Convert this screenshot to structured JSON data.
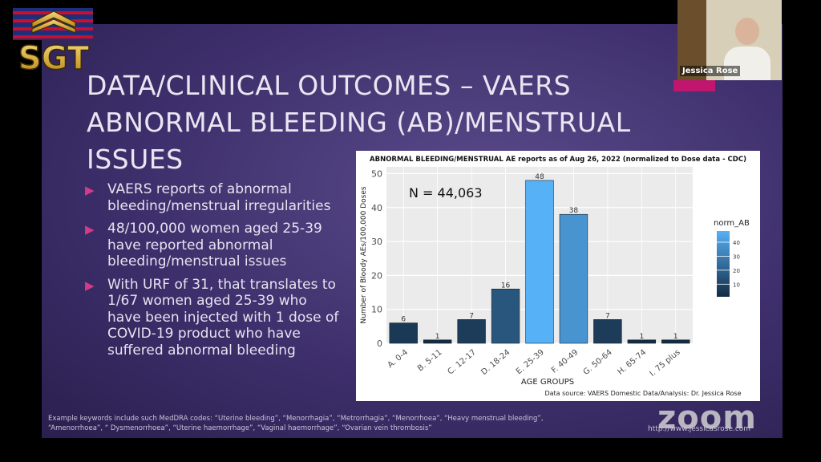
{
  "slide": {
    "title_lines": [
      "DATA/CLINICAL OUTCOMES – VAERS",
      "ABNORMAL BLEEDING (AB)/MENSTRUAL",
      "ISSUES"
    ],
    "bullets": [
      "VAERS reports of abnormal bleeding/menstrual irregularities",
      "48/100,000 women aged 25-39 have reported abnormal bleeding/menstrual issues",
      "With URF of 31, that translates to 1/67 women aged 25-39 who have been injected with 1 dose of COVID-19 product who have suffered abnormal bleeding"
    ],
    "footer_line1": "Example keywords include such MedDRA codes: “Uterine bleeding”, “Menorrhagia”, “Metrorrhagia”, “Menorrhoea”, “Heavy menstrual bleeding”,",
    "footer_line2": "“Amenorrhoea”, “ Dysmenorrhoea”, “Uterine haemorrhage”, “Vaginal haemorrhage”, “Ovarian vein thrombosis”",
    "url": "http://www.jessicasrose.com"
  },
  "video": {
    "participant_name": "Jessica Rose"
  },
  "watermark": {
    "text": "zoom"
  },
  "chart_data": {
    "type": "bar",
    "title": "ABNORMAL BLEEDING/MENSTRUAL AE reports as of Aug 26, 2022 (normalized to Dose data - CDC)",
    "annotation": "N = 44,063",
    "xlabel": "AGE GROUPS",
    "ylabel": "Number of Bloody AEs/100,000 Doses",
    "categories": [
      "A. 0-4",
      "B. 5-11",
      "C. 12-17",
      "D. 18-24",
      "E. 25-39",
      "F. 40-49",
      "G. 50-64",
      "H. 65-74",
      "I. 75 plus"
    ],
    "values": [
      6,
      1,
      7,
      16,
      48,
      38,
      7,
      1,
      1
    ],
    "ylim": [
      0,
      52
    ],
    "yticks": [
      0,
      10,
      20,
      30,
      40,
      50
    ],
    "legend": {
      "title": "norm_AB",
      "ticks": [
        10,
        20,
        30,
        40
      ],
      "placement": "right"
    },
    "source": "Data source: VAERS Domestic Data/Analysis: Dr. Jessica Rose",
    "colors": {
      "low": "#132b43",
      "high": "#56b1f7"
    }
  }
}
